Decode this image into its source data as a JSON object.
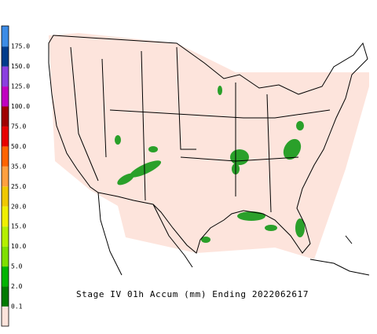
{
  "title": "Stage IV 01h Accum (mm) Ending 2022062617",
  "legend": {
    "colors": [
      "#fde4dc",
      "#007a00",
      "#00b400",
      "#7fe000",
      "#b4f000",
      "#f0f000",
      "#f0c800",
      "#ffa040",
      "#ff6400",
      "#e80000",
      "#a00000",
      "#c000c0",
      "#8a40e0",
      "#003c8c",
      "#3c8ce6"
    ],
    "labels": [
      "0.1",
      "2.0",
      "5.0",
      "10.0",
      "15.0",
      "20.0",
      "25.0",
      "35.0",
      "50.0",
      "75.0",
      "100.0",
      "125.0",
      "150.0",
      "175.0"
    ]
  }
}
